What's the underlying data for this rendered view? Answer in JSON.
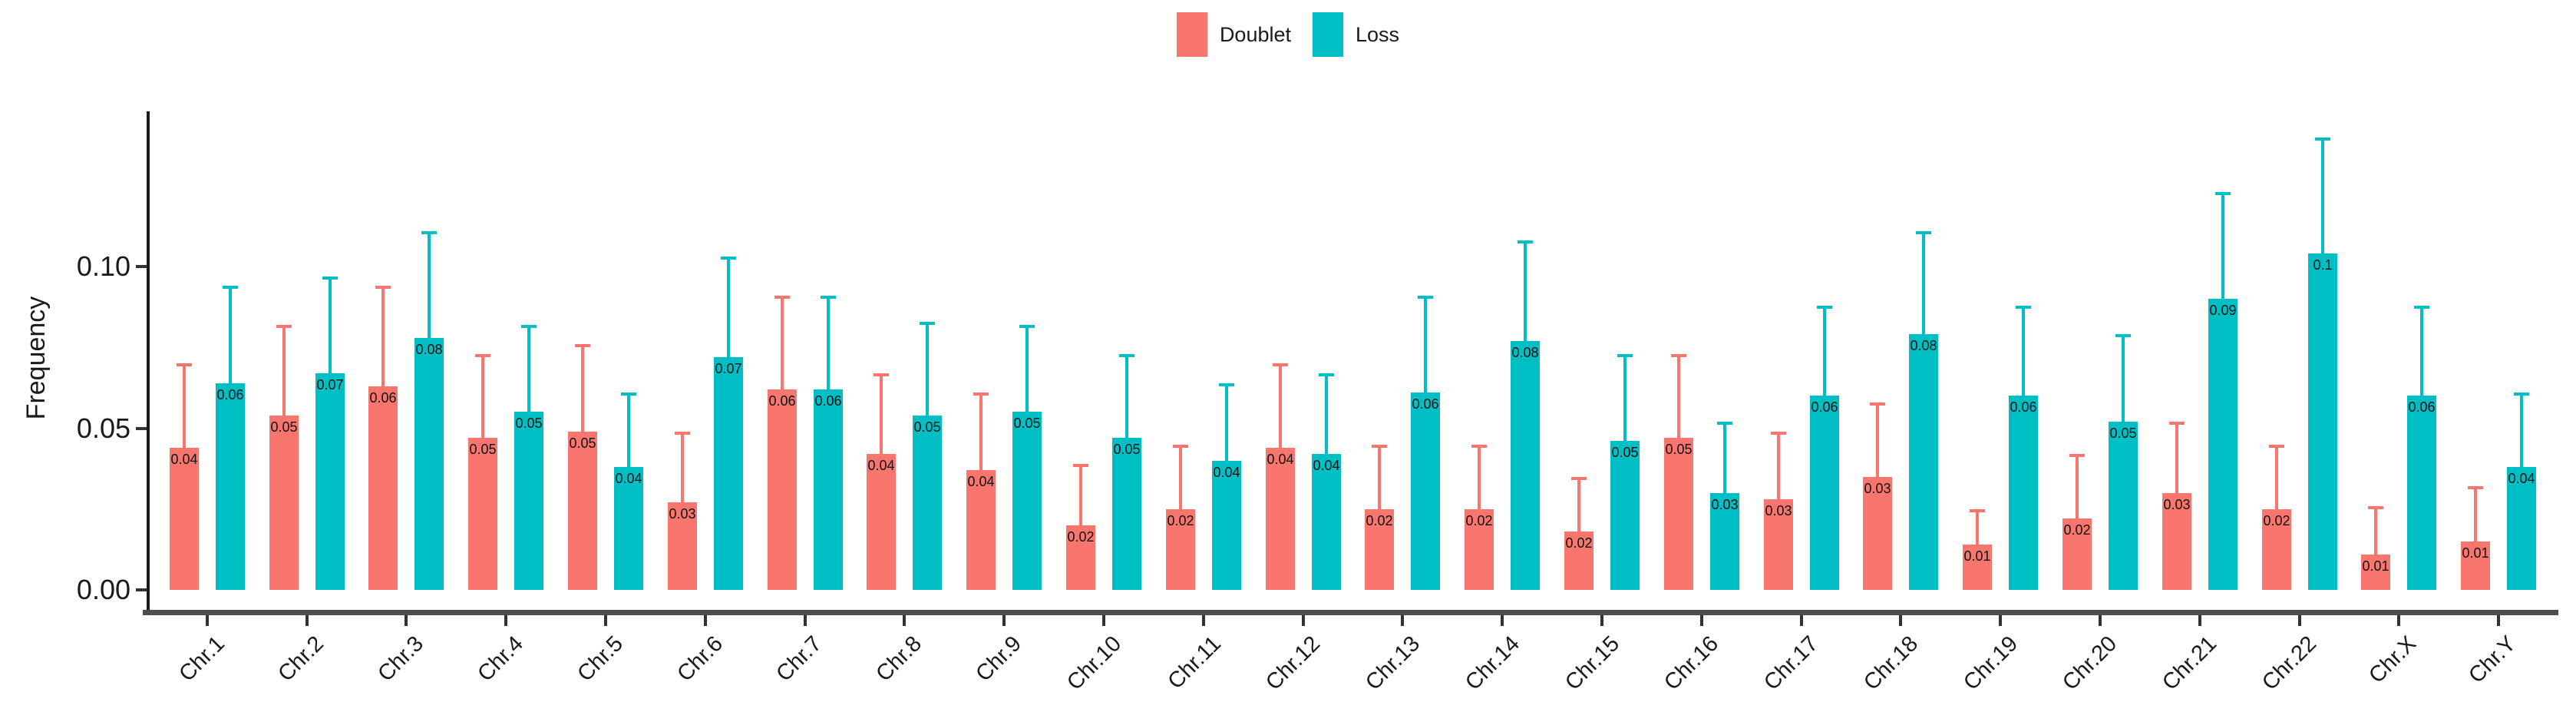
{
  "legend": {
    "items": [
      {
        "label": "Doublet",
        "color": "#F8766D"
      },
      {
        "label": "Loss",
        "color": "#00BFC4"
      }
    ]
  },
  "axes": {
    "y": {
      "title": "Frequency",
      "ticks": [
        "0.00",
        "0.05",
        "0.10"
      ],
      "tick_values": [
        0,
        0.05,
        0.1
      ]
    },
    "x": {
      "title": ""
    }
  },
  "chart_data": {
    "type": "bar",
    "title": "",
    "xlabel": "",
    "ylabel": "Frequency",
    "ylim": [
      0,
      0.148
    ],
    "grid": false,
    "legend_position": "top-center",
    "bar_orientation": "vertical-grouped",
    "error_bars": "upper-only",
    "categories": [
      "Chr.1",
      "Chr.2",
      "Chr.3",
      "Chr.4",
      "Chr.5",
      "Chr.6",
      "Chr.7",
      "Chr.8",
      "Chr.9",
      "Chr.10",
      "Chr.11",
      "Chr.12",
      "Chr.13",
      "Chr.14",
      "Chr.15",
      "Chr.16",
      "Chr.17",
      "Chr.18",
      "Chr.19",
      "Chr.20",
      "Chr.21",
      "Chr.22",
      "Chr.X",
      "Chr.Y"
    ],
    "series": [
      {
        "name": "Doublet",
        "color": "#F8766D",
        "values": [
          0.044,
          0.054,
          0.063,
          0.047,
          0.049,
          0.027,
          0.062,
          0.042,
          0.037,
          0.02,
          0.025,
          0.044,
          0.025,
          0.025,
          0.018,
          0.047,
          0.028,
          0.035,
          0.014,
          0.022,
          0.03,
          0.025,
          0.011,
          0.015
        ],
        "labels": [
          "0.04",
          "0.05",
          "0.06",
          "0.05",
          "0.05",
          "0.03",
          "0.06",
          "0.04",
          "0.04",
          "0.02",
          "0.02",
          "0.04",
          "0.02",
          "0.02",
          "0.02",
          "0.05",
          "0.03",
          "0.03",
          "0.01",
          "0.02",
          "0.03",
          "0.02",
          "0.01",
          "0.01"
        ],
        "error_top": [
          0.07,
          0.082,
          0.094,
          0.073,
          0.076,
          0.049,
          0.091,
          0.067,
          0.061,
          0.039,
          0.045,
          0.07,
          0.045,
          0.045,
          0.035,
          0.073,
          0.049,
          0.058,
          0.025,
          0.042,
          0.052,
          0.045,
          0.026,
          0.032
        ]
      },
      {
        "name": "Loss",
        "color": "#00BFC4",
        "values": [
          0.064,
          0.067,
          0.078,
          0.055,
          0.038,
          0.072,
          0.062,
          0.054,
          0.055,
          0.047,
          0.04,
          0.042,
          0.061,
          0.077,
          0.046,
          0.03,
          0.06,
          0.079,
          0.06,
          0.052,
          0.09,
          0.104,
          0.06,
          0.038
        ],
        "labels": [
          "0.06",
          "0.07",
          "0.08",
          "0.05",
          "0.04",
          "0.07",
          "0.06",
          "0.05",
          "0.05",
          "0.05",
          "0.04",
          "0.04",
          "0.06",
          "0.08",
          "0.05",
          "0.03",
          "0.06",
          "0.08",
          "0.06",
          "0.05",
          "0.09",
          "0.1",
          "0.06",
          "0.04"
        ],
        "error_top": [
          0.094,
          0.097,
          0.111,
          0.082,
          0.061,
          0.103,
          0.091,
          0.083,
          0.082,
          0.073,
          0.064,
          0.067,
          0.091,
          0.108,
          0.073,
          0.052,
          0.088,
          0.111,
          0.088,
          0.079,
          0.123,
          0.14,
          0.088,
          0.061
        ]
      }
    ]
  }
}
